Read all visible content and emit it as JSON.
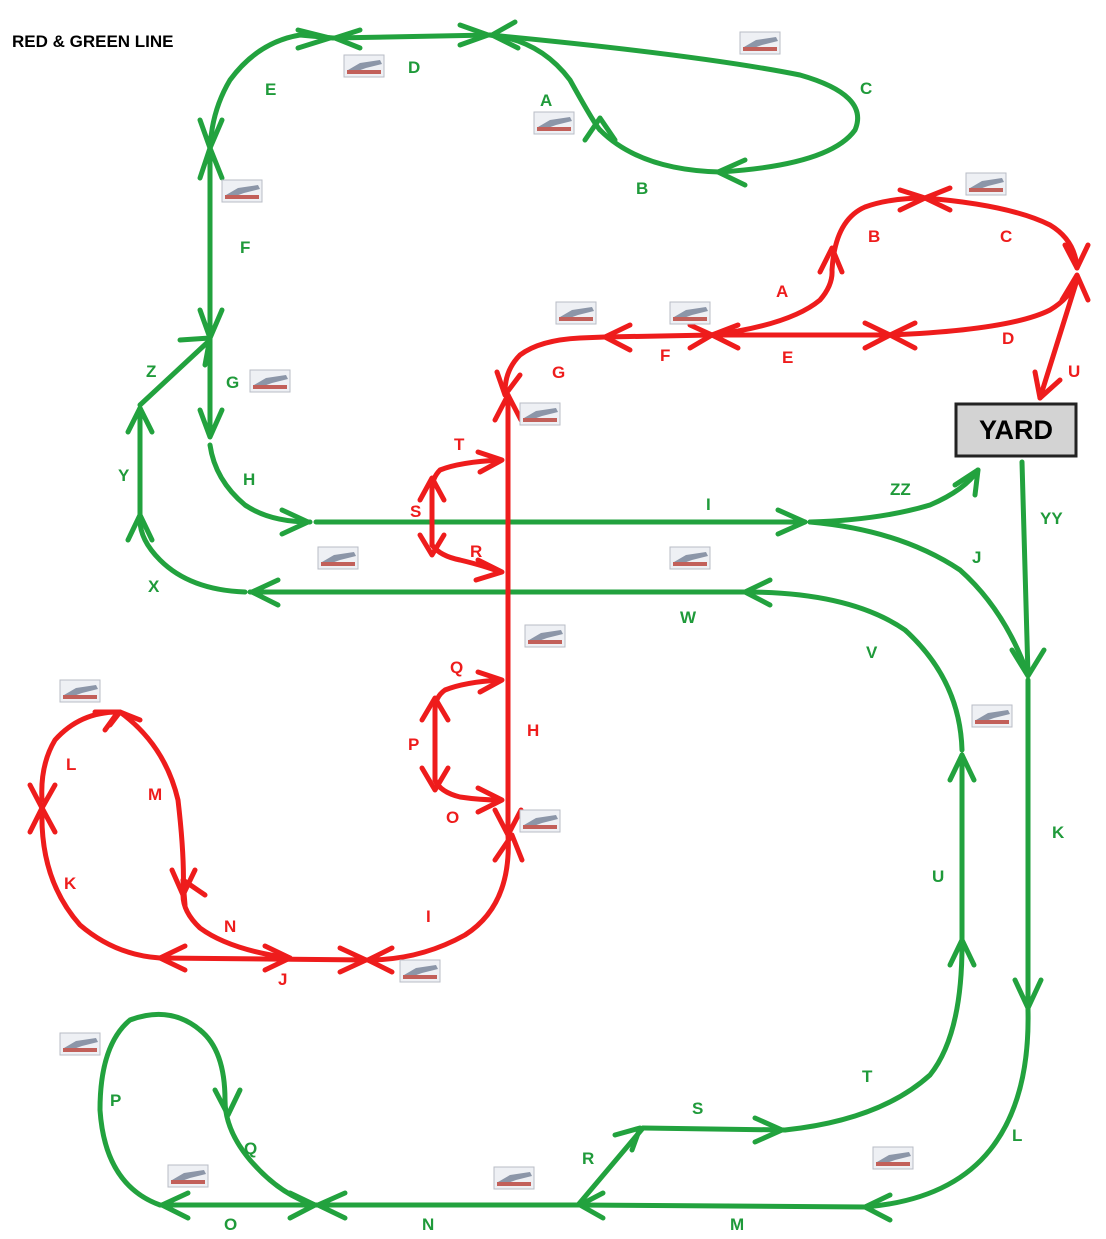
{
  "title": "RED & GREEN LINE",
  "yard": "YARD",
  "colors": {
    "green": "#22a23e",
    "red": "#ee1c1c",
    "yard_fill": "#d3d3d3"
  },
  "icon": "station-icon",
  "green_labels": {
    "A": "A",
    "B": "B",
    "C": "C",
    "D": "D",
    "E": "E",
    "F": "F",
    "G": "G",
    "H": "H",
    "I": "I",
    "J": "J",
    "K": "K",
    "L": "L",
    "M": "M",
    "N": "N",
    "O": "O",
    "P": "P",
    "Q": "Q",
    "R": "R",
    "S": "S",
    "T": "T",
    "U": "U",
    "V": "V",
    "W": "W",
    "X": "X",
    "Y": "Y",
    "Z": "Z",
    "YY": "YY",
    "ZZ": "ZZ"
  },
  "red_labels": {
    "A": "A",
    "B": "B",
    "C": "C",
    "D": "D",
    "E": "E",
    "F": "F",
    "G": "G",
    "H": "H",
    "I": "I",
    "J": "J",
    "K": "K",
    "L": "L",
    "M": "M",
    "N": "N",
    "O": "O",
    "P": "P",
    "Q": "Q",
    "R": "R",
    "S": "S",
    "T": "T",
    "U": "U"
  }
}
